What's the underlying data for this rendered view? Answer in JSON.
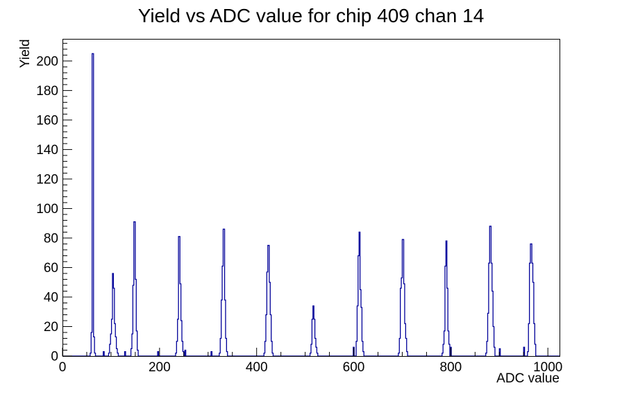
{
  "title": "Yield vs ADC value for chip 409 chan 14",
  "chart_data": {
    "type": "bar",
    "subtype": "histogram-step-outline",
    "title": "Yield vs ADC value for chip 409 chan 14",
    "xlabel": "ADC value",
    "ylabel": "Yield",
    "xlim": [
      0,
      1024
    ],
    "ylim": [
      0,
      215
    ],
    "x_major_ticks": [
      0,
      200,
      400,
      600,
      800,
      1000
    ],
    "x_minor_step": 50,
    "y_major_ticks": [
      0,
      20,
      40,
      60,
      80,
      100,
      120,
      140,
      160,
      180,
      200
    ],
    "y_minor_step": 4,
    "grid": false,
    "legend": null,
    "line_color": "#000099",
    "frame_color": "#000000",
    "background_color": "#ffffff",
    "peaks_summary": [
      {
        "adc": 63,
        "yield": 205
      },
      {
        "adc": 104,
        "yield": 56
      },
      {
        "adc": 148,
        "yield": 91
      },
      {
        "adc": 240,
        "yield": 81
      },
      {
        "adc": 332,
        "yield": 86
      },
      {
        "adc": 424,
        "yield": 75
      },
      {
        "adc": 517,
        "yield": 34
      },
      {
        "adc": 611,
        "yield": 84
      },
      {
        "adc": 701,
        "yield": 79
      },
      {
        "adc": 790,
        "yield": 78
      },
      {
        "adc": 881,
        "yield": 88
      },
      {
        "adc": 965,
        "yield": 76
      }
    ],
    "bins": [
      [
        57,
        2,
        2
      ],
      [
        59,
        2,
        16
      ],
      [
        61,
        3,
        205
      ],
      [
        64,
        2,
        13
      ],
      [
        66,
        2,
        2
      ],
      [
        84,
        2,
        3
      ],
      [
        95,
        2,
        2
      ],
      [
        97,
        2,
        8
      ],
      [
        99,
        2,
        15
      ],
      [
        101,
        2,
        25
      ],
      [
        103,
        2,
        56
      ],
      [
        105,
        2,
        46
      ],
      [
        107,
        2,
        22
      ],
      [
        109,
        2,
        13
      ],
      [
        111,
        2,
        5
      ],
      [
        113,
        2,
        2
      ],
      [
        128,
        2,
        3
      ],
      [
        141,
        2,
        5
      ],
      [
        143,
        2,
        15
      ],
      [
        145,
        2,
        48
      ],
      [
        147,
        3,
        91
      ],
      [
        150,
        2,
        52
      ],
      [
        152,
        2,
        17
      ],
      [
        154,
        2,
        4
      ],
      [
        196,
        2,
        3
      ],
      [
        233,
        2,
        2
      ],
      [
        235,
        2,
        10
      ],
      [
        237,
        2,
        25
      ],
      [
        239,
        3,
        81
      ],
      [
        242,
        2,
        49
      ],
      [
        244,
        2,
        24
      ],
      [
        246,
        2,
        10
      ],
      [
        248,
        2,
        3
      ],
      [
        252,
        2,
        4
      ],
      [
        306,
        2,
        3
      ],
      [
        323,
        2,
        2
      ],
      [
        325,
        2,
        12
      ],
      [
        327,
        2,
        38
      ],
      [
        329,
        2,
        61
      ],
      [
        331,
        3,
        86
      ],
      [
        334,
        2,
        38
      ],
      [
        336,
        2,
        12
      ],
      [
        338,
        2,
        3
      ],
      [
        415,
        2,
        2
      ],
      [
        417,
        2,
        10
      ],
      [
        419,
        2,
        28
      ],
      [
        421,
        2,
        57
      ],
      [
        423,
        3,
        75
      ],
      [
        426,
        2,
        50
      ],
      [
        428,
        2,
        28
      ],
      [
        430,
        2,
        10
      ],
      [
        432,
        2,
        2
      ],
      [
        510,
        2,
        2
      ],
      [
        512,
        2,
        8
      ],
      [
        514,
        2,
        25
      ],
      [
        516,
        2,
        34
      ],
      [
        518,
        2,
        25
      ],
      [
        520,
        2,
        12
      ],
      [
        522,
        2,
        6
      ],
      [
        524,
        2,
        2
      ],
      [
        599,
        2,
        6
      ],
      [
        605,
        2,
        10
      ],
      [
        607,
        2,
        34
      ],
      [
        609,
        2,
        68
      ],
      [
        611,
        2,
        84
      ],
      [
        613,
        2,
        45
      ],
      [
        615,
        2,
        33
      ],
      [
        617,
        2,
        10
      ],
      [
        619,
        2,
        3
      ],
      [
        692,
        2,
        2
      ],
      [
        694,
        2,
        12
      ],
      [
        696,
        2,
        46
      ],
      [
        698,
        2,
        53
      ],
      [
        700,
        3,
        79
      ],
      [
        703,
        2,
        49
      ],
      [
        705,
        2,
        22
      ],
      [
        707,
        2,
        12
      ],
      [
        709,
        2,
        3
      ],
      [
        782,
        2,
        2
      ],
      [
        784,
        2,
        8
      ],
      [
        786,
        2,
        17
      ],
      [
        788,
        2,
        61
      ],
      [
        790,
        2,
        78
      ],
      [
        792,
        2,
        46
      ],
      [
        794,
        2,
        17
      ],
      [
        796,
        2,
        8
      ],
      [
        800,
        1,
        6
      ],
      [
        872,
        2,
        2
      ],
      [
        874,
        2,
        10
      ],
      [
        876,
        2,
        29
      ],
      [
        878,
        2,
        63
      ],
      [
        880,
        3,
        88
      ],
      [
        883,
        2,
        63
      ],
      [
        885,
        2,
        44
      ],
      [
        887,
        2,
        20
      ],
      [
        889,
        2,
        6
      ],
      [
        900,
        2,
        5
      ],
      [
        950,
        2,
        6
      ],
      [
        958,
        2,
        3
      ],
      [
        960,
        2,
        22
      ],
      [
        962,
        2,
        63
      ],
      [
        964,
        3,
        76
      ],
      [
        967,
        2,
        63
      ],
      [
        969,
        2,
        50
      ],
      [
        971,
        2,
        22
      ],
      [
        973,
        2,
        8
      ]
    ]
  }
}
